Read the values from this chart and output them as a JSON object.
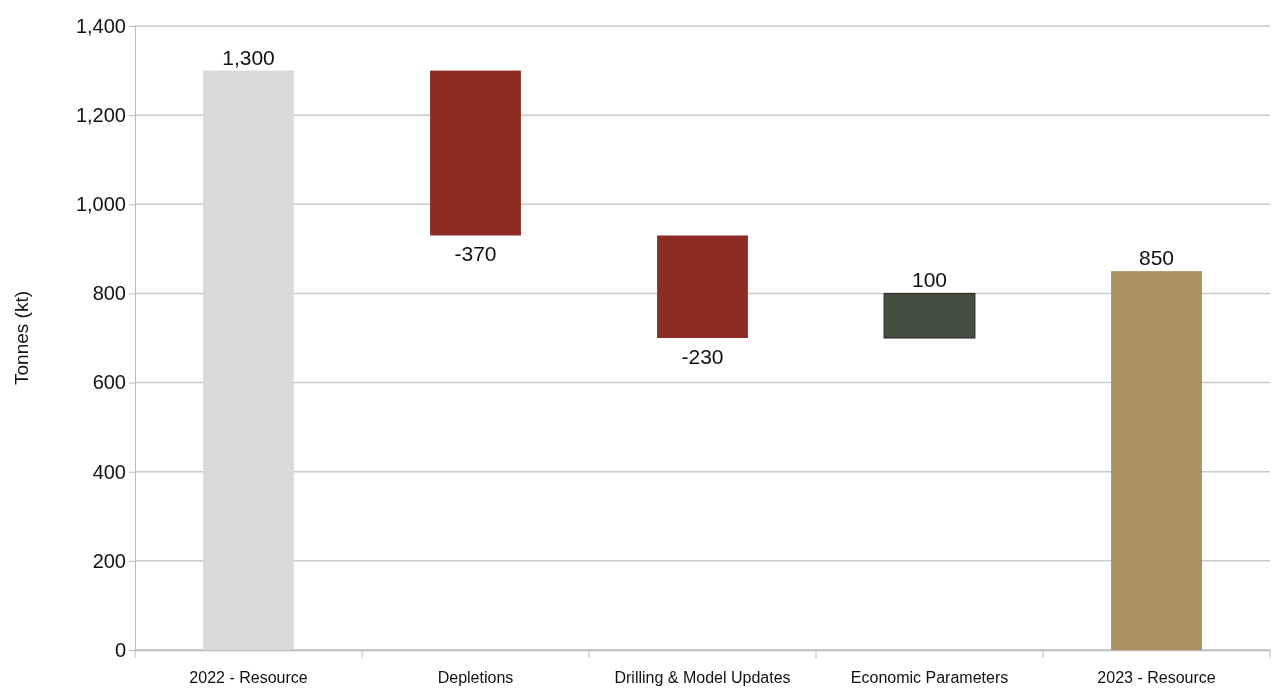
{
  "chart_data": {
    "type": "bar",
    "ylabel": "Tonnes (kt)",
    "categories": [
      "2022 - Resource",
      "Depletions",
      "Drilling & Model Updates",
      "Economic Parameters",
      "2023 - Resource"
    ],
    "values": [
      1300,
      -370,
      -230,
      100,
      850
    ],
    "base": [
      0,
      1300,
      930,
      700,
      0
    ],
    "colors": [
      "#d9d9d9",
      "#8b2b24",
      "#8b2b24",
      "#434e3e",
      "#a89060"
    ],
    "value_labels": [
      "1,300",
      "-370",
      "-230",
      "100",
      "850"
    ],
    "ylim": [
      0,
      1400
    ],
    "yticks": [
      0,
      {
        "value": 200,
        "label": "200"
      },
      {
        "value": 400,
        "label": "400"
      },
      {
        "value": 600,
        "label": "600"
      },
      {
        "value": 800,
        "label": "800"
      },
      {
        "value": 1000,
        "label": "1,000"
      },
      {
        "value": 1200,
        "label": "1,200"
      },
      {
        "value": 1400,
        "label": "1,400"
      }
    ],
    "grid": "y"
  }
}
